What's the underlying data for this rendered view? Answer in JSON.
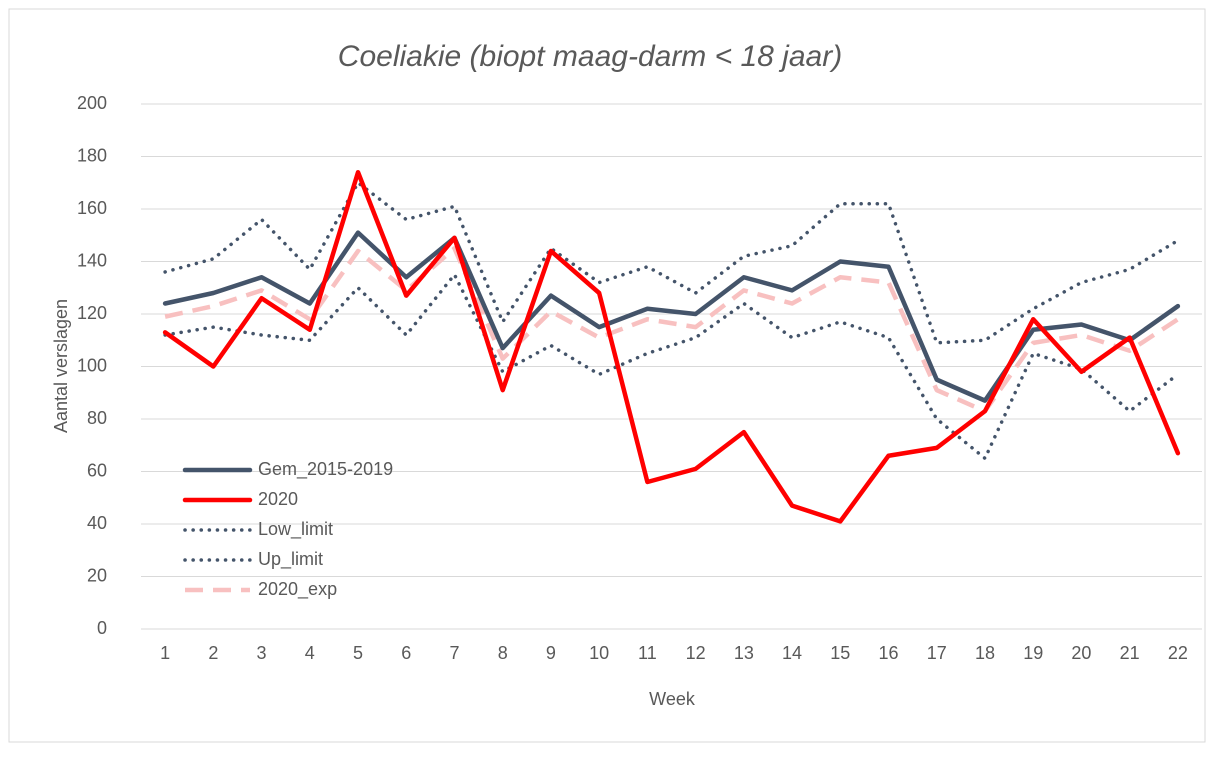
{
  "chart_data": {
    "type": "line",
    "title": "Coeliakie (biopt maag-darm < 18 jaar)",
    "xlabel": "Week",
    "ylabel": "Aantal verslagen",
    "categories": [
      "1",
      "2",
      "3",
      "4",
      "5",
      "6",
      "7",
      "8",
      "9",
      "10",
      "11",
      "12",
      "13",
      "14",
      "15",
      "16",
      "17",
      "18",
      "19",
      "20",
      "21",
      "22"
    ],
    "series": [
      {
        "name": "Gem_2015-2019",
        "color": "#44546a",
        "dash": "solid",
        "values": [
          124,
          128,
          134,
          124,
          151,
          134,
          149,
          107,
          127,
          115,
          122,
          120,
          134,
          129,
          140,
          138,
          95,
          87,
          114,
          116,
          110,
          123
        ]
      },
      {
        "name": "2020",
        "color": "#ff0000",
        "dash": "solid",
        "values": [
          113,
          100,
          126,
          114,
          174,
          127,
          149,
          91,
          144,
          128,
          56,
          61,
          75,
          47,
          41,
          66,
          69,
          83,
          118,
          98,
          111,
          67
        ]
      },
      {
        "name": "Low_limit",
        "color": "#44546a",
        "dash": "dotted",
        "values": [
          112,
          115,
          112,
          110,
          130,
          112,
          135,
          98,
          108,
          97,
          105,
          111,
          124,
          111,
          117,
          111,
          80,
          65,
          105,
          99,
          83,
          97
        ]
      },
      {
        "name": "Up_limit",
        "color": "#44546a",
        "dash": "dotted",
        "values": [
          136,
          141,
          156,
          137,
          170,
          156,
          161,
          117,
          145,
          132,
          138,
          128,
          142,
          146,
          162,
          162,
          109,
          110,
          122,
          132,
          137,
          148
        ]
      },
      {
        "name": "2020_exp",
        "color": "#f8c0c0",
        "dash": "dashed",
        "values": [
          119,
          123,
          129,
          118,
          144,
          129,
          145,
          103,
          121,
          111,
          118,
          115,
          129,
          124,
          134,
          132,
          91,
          83,
          109,
          112,
          106,
          118
        ]
      }
    ],
    "ylim": [
      0,
      200
    ],
    "yticks": [
      0,
      20,
      40,
      60,
      80,
      100,
      120,
      140,
      160,
      180,
      200
    ],
    "grid": true,
    "legend": "lower left"
  }
}
